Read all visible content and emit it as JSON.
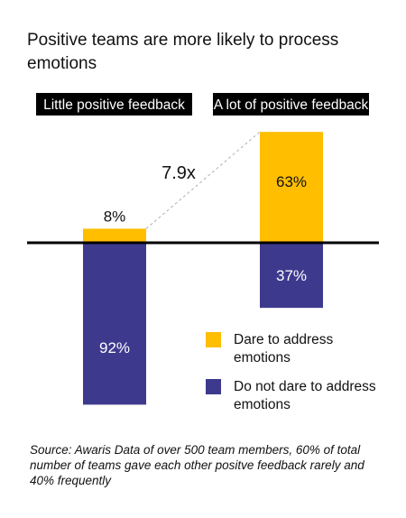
{
  "title": "Positive teams are more likely to process emotions",
  "chart_data": {
    "type": "bar",
    "stacked": true,
    "diverging": true,
    "categories": [
      "Little positive feedback",
      "A lot of positive feedback"
    ],
    "series": [
      {
        "name": "Dare to address emotions",
        "values": [
          8,
          63
        ],
        "labels": [
          "8%",
          "63%"
        ],
        "color": "#FFBE00",
        "direction": "up"
      },
      {
        "name": "Do not dare to address emotions",
        "values": [
          92,
          37
        ],
        "labels": [
          "92%",
          "37%"
        ],
        "color": "#3D3A8E",
        "direction": "down"
      }
    ],
    "annotation": "7.9x",
    "unit": "%",
    "legend_position": "right",
    "grid": false
  },
  "source": "Source: Awaris Data of over 500 team members, 60% of total number of teams gave each other positve feedback rarely and 40% frequently",
  "colors": {
    "dare": "#FFBE00",
    "dont_dare": "#3D3A8E",
    "axis": "#000000",
    "label_bg": "#000000",
    "label_text": "#FFFFFF",
    "connector": "#BBBBBB"
  }
}
